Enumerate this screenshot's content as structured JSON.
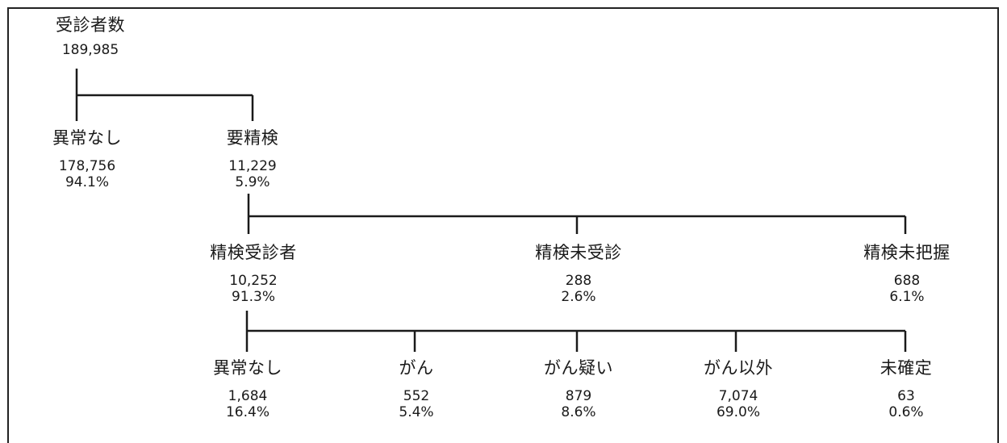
{
  "root": {
    "label": "受診者数",
    "count": "189,985"
  },
  "level1": [
    {
      "label": "異常なし",
      "count": "178,756",
      "pct": "94.1%"
    },
    {
      "label": "要精検",
      "count": "11,229",
      "pct": "5.9%"
    }
  ],
  "level2": [
    {
      "label": "精検受診者",
      "count": "10,252",
      "pct": "91.3%"
    },
    {
      "label": "精検未受診",
      "count": "288",
      "pct": "2.6%"
    },
    {
      "label": "精検未把握",
      "count": "688",
      "pct": "6.1%"
    }
  ],
  "level3": [
    {
      "label": "異常なし",
      "count": "1,684",
      "pct": "16.4%"
    },
    {
      "label": "がん",
      "count": "552",
      "pct": "5.4%"
    },
    {
      "label": "がん疑い",
      "count": "879",
      "pct": "8.6%"
    },
    {
      "label": "がん以外",
      "count": "7,074",
      "pct": "69.0%"
    },
    {
      "label": "未確定",
      "count": "63",
      "pct": "0.6%"
    }
  ]
}
